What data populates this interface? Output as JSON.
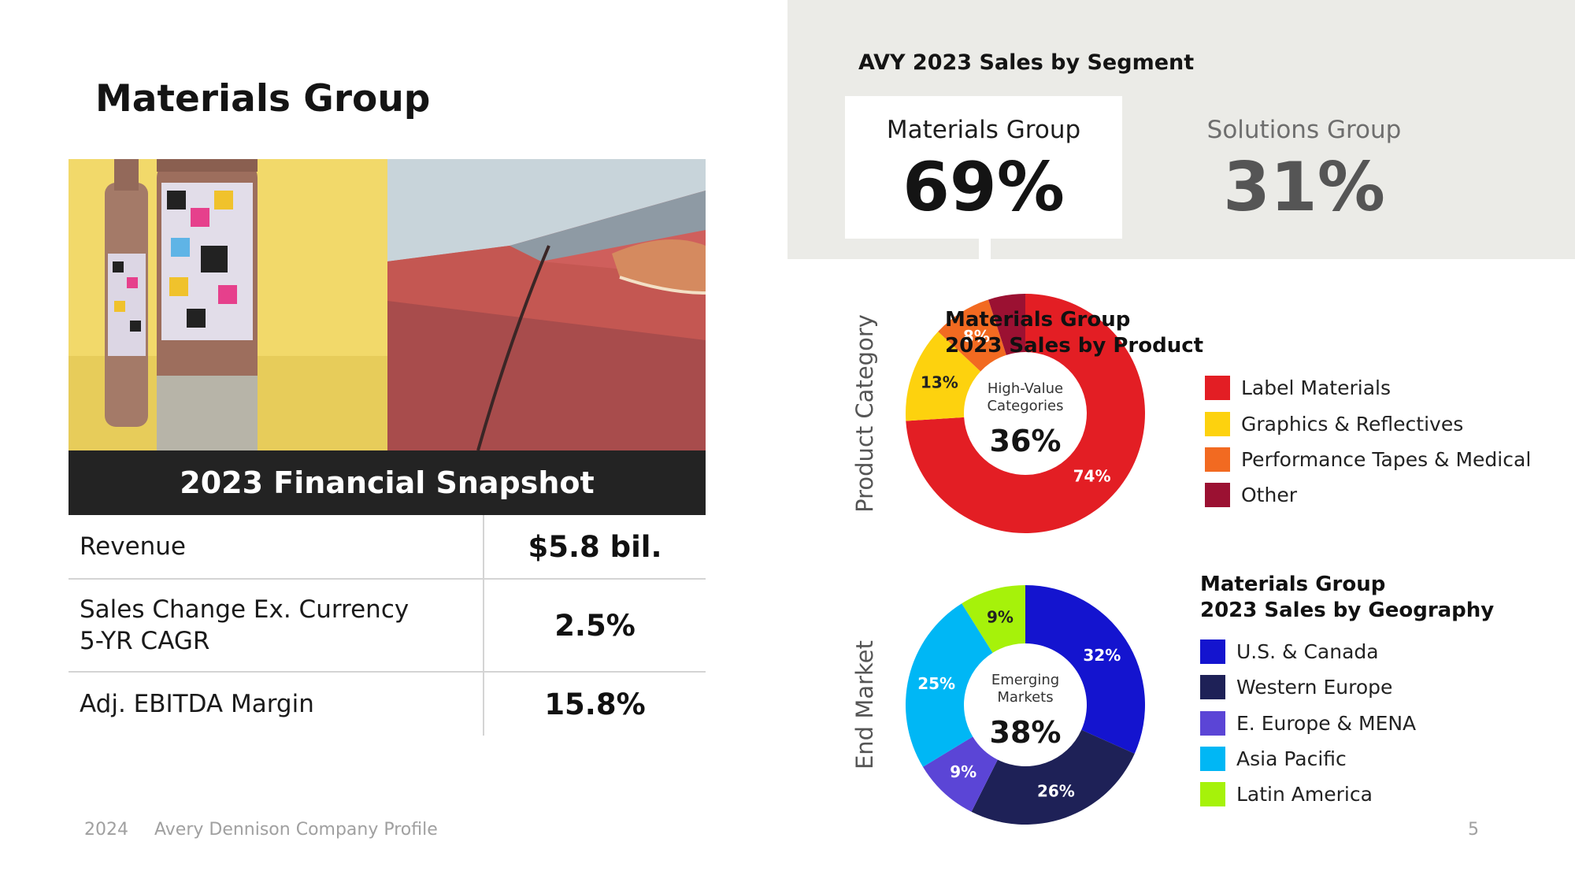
{
  "page": {
    "title": "Materials Group",
    "footer": {
      "year": "2024",
      "company": "Avery Dennison Company Profile",
      "page_number": "5"
    }
  },
  "snapshot": {
    "title": "2023 Financial Snapshot",
    "rows": [
      {
        "label_lines": [
          "Revenue"
        ],
        "value": "$5.8 bil."
      },
      {
        "label_lines": [
          "Sales Change Ex. Currency",
          "5-YR CAGR"
        ],
        "value": "2.5%"
      },
      {
        "label_lines": [
          "Adj. EBITDA Margin"
        ],
        "value": "15.8%"
      }
    ]
  },
  "segments": {
    "title": "AVY 2023 Sales by Segment",
    "items": [
      {
        "name": "Materials Group",
        "value": "69%",
        "highlighted": true
      },
      {
        "name": "Solutions Group",
        "value": "31%",
        "highlighted": false
      }
    ]
  },
  "colors": {
    "dark_bar": "#232323",
    "panel_bg": "#ebebe7"
  },
  "chart_data": [
    {
      "type": "pie",
      "donut": true,
      "side_label": "Product Category",
      "legend_title_lines": [
        "Materials Group",
        "2023 Sales by Product"
      ],
      "center_caption_lines": [
        "High-Value",
        "Categories"
      ],
      "center_value": "36%",
      "categories": [
        "Label Materials",
        "Graphics & Reflectives",
        "Performance Tapes & Medical",
        "Other"
      ],
      "values": [
        74,
        13,
        8,
        5
      ],
      "data_labels": [
        "74%",
        "13%",
        "8%",
        ""
      ],
      "colors": [
        "#e31e24",
        "#fdd20e",
        "#f26a21",
        "#9b1132"
      ],
      "label_colors": [
        "#ffffff",
        "#222222",
        "#ffffff",
        "#ffffff"
      ]
    },
    {
      "type": "pie",
      "donut": true,
      "side_label": "End Market",
      "legend_title_lines": [
        "Materials Group",
        "2023 Sales by Geography"
      ],
      "center_caption_lines": [
        "Emerging",
        "Markets"
      ],
      "center_value": "38%",
      "categories": [
        "U.S. & Canada",
        "Western Europe",
        "E. Europe & MENA",
        "Asia Pacific",
        "Latin America"
      ],
      "values": [
        32,
        26,
        9,
        25,
        9
      ],
      "data_labels": [
        "32%",
        "26%",
        "9%",
        "25%",
        "9%"
      ],
      "colors": [
        "#1414cf",
        "#1e2157",
        "#5b45d6",
        "#00b7f5",
        "#a6f20a"
      ],
      "label_colors": [
        "#ffffff",
        "#ffffff",
        "#ffffff",
        "#ffffff",
        "#222222"
      ]
    }
  ]
}
